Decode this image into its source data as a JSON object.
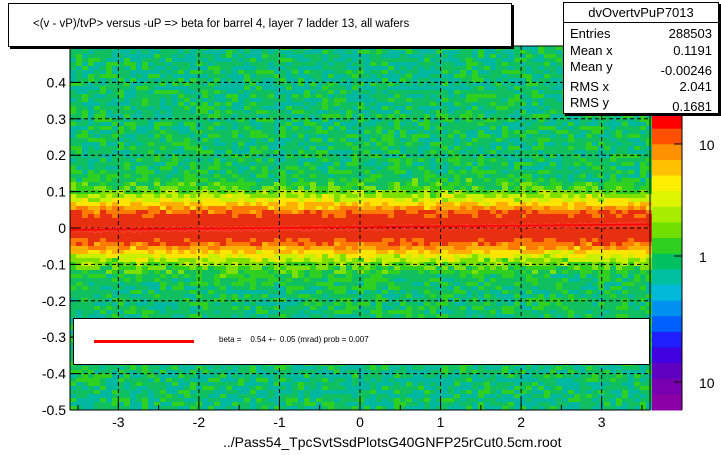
{
  "chart_data": {
    "type": "heatmap",
    "title": "<(v - vP)/tvP> versus  -uP => beta for barrel 4, layer 7 ladder 13, all wafers",
    "xlabel": "../Pass54_TpcSvtSsdPlotsG40GNFP25rCut0.5cm.root",
    "ylabel": "",
    "xlim": [
      -3.6,
      3.6
    ],
    "ylim": [
      -0.5,
      0.5
    ],
    "x_ticks": [
      "-3",
      "-2",
      "-1",
      "0",
      "1",
      "2",
      "3"
    ],
    "y_ticks": [
      "-0.5",
      "-0.4",
      "-0.3",
      "-0.2",
      "-0.1",
      "0",
      "0.1",
      "0.2",
      "0.3",
      "0.4"
    ],
    "colorbar_ticks": [
      "10",
      "1",
      "10"
    ],
    "colorbar_scale": "log",
    "grid": true,
    "profile_points": {
      "x": [
        -3.5,
        -3.0,
        -2.5,
        -2.0,
        -1.5,
        -1.0,
        -0.5,
        0.0,
        0.5,
        1.0,
        1.5,
        2.0,
        2.5,
        3.0,
        3.5
      ],
      "y": [
        -0.005,
        -0.004,
        -0.003,
        -0.003,
        -0.002,
        -0.002,
        -0.001,
        0.0,
        0.001,
        0.002,
        0.003,
        0.005,
        0.006,
        0.008,
        0.01
      ]
    },
    "fit_line": {
      "x": [
        -3.6,
        3.6
      ],
      "y": [
        -0.005,
        0.01
      ]
    },
    "colors": {
      "profile": "#ff4040",
      "fit": "#ff0000"
    }
  },
  "stats": {
    "name": "dvOvertvPuP7013",
    "rows": [
      {
        "label": "Entries",
        "value": "288503"
      },
      {
        "label": "Mean x",
        "value": "0.1191"
      },
      {
        "label": "Mean y",
        "value": "-0.00246"
      },
      {
        "label": "RMS x",
        "value": "2.041"
      },
      {
        "label": "RMS y",
        "value": "0.1681"
      }
    ]
  },
  "legend": {
    "text": "beta =    0.54 +-  0.05 (mrad) prob = 0.007"
  }
}
